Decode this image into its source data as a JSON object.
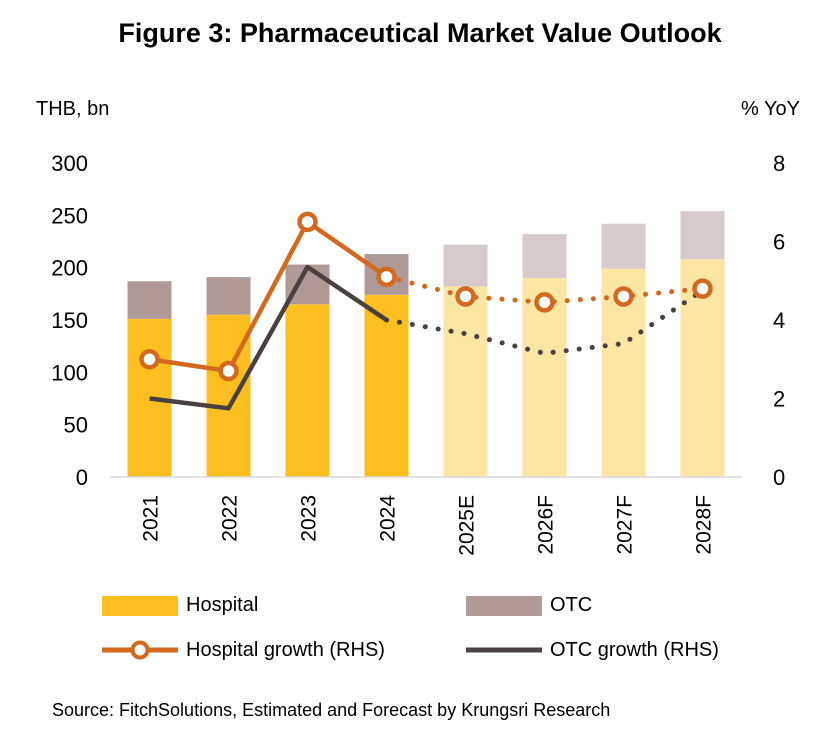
{
  "title": "Figure 3: Pharmaceutical Market Value Outlook",
  "source": "Source: FitchSolutions, Estimated and Forecast by Krungsri Research",
  "colors": {
    "hospital": "#FDBF1F",
    "hospital_forecast": "#FDE5A4",
    "otc": "#B09A98",
    "otc_forecast": "#D7CACA",
    "hospital_growth": "#D2691E",
    "otc_growth": "#4A4040"
  },
  "chart_data": {
    "type": "bar",
    "title": "Figure 3: Pharmaceutical Market Value Outlook",
    "ylabel": "THB, bn",
    "y2label": "% YoY",
    "ylim": [
      0,
      300
    ],
    "y2lim": [
      0,
      8
    ],
    "yticks": [
      "0",
      "50",
      "100",
      "150",
      "200",
      "250",
      "300"
    ],
    "y2ticks": [
      "0",
      "2",
      "4",
      "6",
      "8"
    ],
    "categories": [
      "2021",
      "2022",
      "2023",
      "2024",
      "2025E",
      "2026F",
      "2027F",
      "2028F"
    ],
    "forecast_from_index": 4,
    "series": [
      {
        "name": "Hospital",
        "kind": "stacked-bar",
        "values": [
          151,
          155,
          165,
          174,
          182,
          190,
          199,
          208
        ]
      },
      {
        "name": "OTC",
        "kind": "stacked-bar",
        "values": [
          36,
          36,
          38,
          39,
          40,
          42,
          43,
          46
        ]
      },
      {
        "name": "Hospital growth (RHS)",
        "kind": "line",
        "axis": "right",
        "values": [
          3.0,
          2.7,
          6.5,
          5.1,
          4.6,
          4.45,
          4.6,
          4.8
        ]
      },
      {
        "name": "OTC growth (RHS)",
        "kind": "line",
        "axis": "right",
        "values": [
          2.0,
          1.75,
          5.35,
          4.0,
          3.65,
          3.15,
          3.4,
          4.75
        ]
      }
    ],
    "legend": [
      "Hospital",
      "OTC",
      "Hospital growth (RHS)",
      "OTC growth (RHS)"
    ]
  }
}
